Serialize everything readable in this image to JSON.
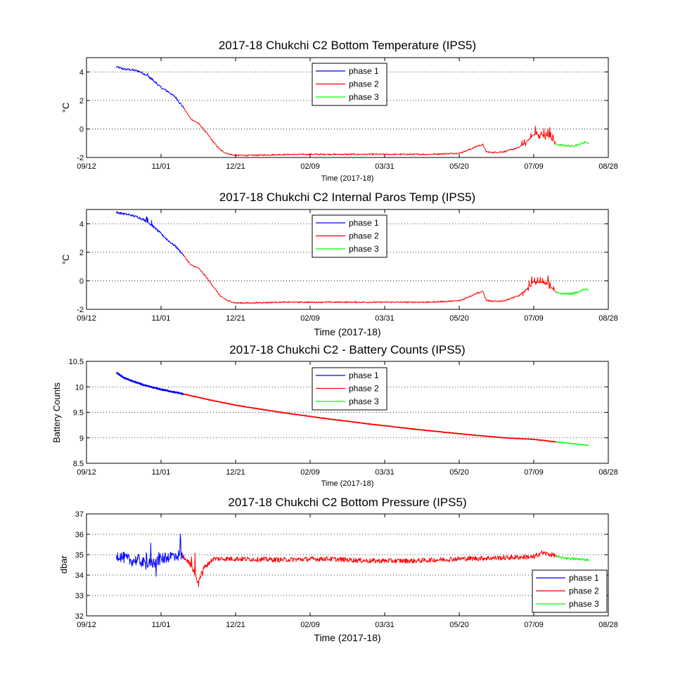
{
  "figure": {
    "background": "#ffffff",
    "phase_colors": {
      "phase 1": "#0000ff",
      "phase 2": "#ff0000",
      "phase 3": "#00ff00"
    }
  },
  "chart_data": [
    {
      "type": "line",
      "title": "2017-18 Chukchi C2 Bottom Temperature (IPS5)",
      "xlabel": "Time (2017-18)",
      "ylabel": "°C",
      "x_ticks": [
        "09/12",
        "11/01",
        "12/21",
        "02/09",
        "03/31",
        "05/20",
        "07/09",
        "08/28"
      ],
      "x_tick_days": [
        0,
        50,
        100,
        150,
        200,
        250,
        300,
        350
      ],
      "xlim_days": [
        0,
        350
      ],
      "ylim": [
        -2,
        5
      ],
      "y_ticks": [
        "-2",
        "0",
        "2",
        "4"
      ],
      "y_tick_values": [
        -2,
        0,
        2,
        4
      ],
      "grid": "dotted",
      "legend": "top-center",
      "legend_entries": [
        "phase 1",
        "phase 2",
        "phase 3"
      ],
      "series": [
        {
          "name": "phase 1",
          "color": "#0000ff",
          "noise": 0.08,
          "x": [
            20,
            25,
            30,
            35,
            40,
            45,
            50,
            55,
            60,
            65
          ],
          "y": [
            4.35,
            4.2,
            4.15,
            4.05,
            3.8,
            3.4,
            2.9,
            2.6,
            2.2,
            1.5
          ]
        },
        {
          "name": "phase 2",
          "color": "#ff0000",
          "noise": 0.05,
          "x": [
            65,
            70,
            75,
            80,
            85,
            90,
            95,
            100,
            110,
            130,
            150,
            180,
            210,
            230,
            250,
            258,
            262,
            266,
            268,
            272,
            280,
            290,
            295,
            300,
            305,
            310,
            315
          ],
          "y": [
            1.5,
            0.7,
            0.4,
            -0.2,
            -0.9,
            -1.5,
            -1.75,
            -1.85,
            -1.85,
            -1.8,
            -1.78,
            -1.78,
            -1.78,
            -1.78,
            -1.7,
            -1.4,
            -1.2,
            -1.1,
            -1.6,
            -1.65,
            -1.6,
            -1.3,
            -0.9,
            -0.4,
            -0.4,
            -0.5,
            -1.05
          ]
        },
        {
          "name": "phase 3",
          "color": "#00ff00",
          "noise": 0.07,
          "x": [
            315,
            320,
            325,
            330,
            335,
            337
          ],
          "y": [
            -1.1,
            -1.15,
            -1.2,
            -1.1,
            -0.9,
            -1.05
          ]
        }
      ],
      "spikes": [
        {
          "series": "phase 2",
          "x_range": [
            292,
            316
          ],
          "amplitude": 0.6,
          "count": 34
        },
        {
          "series": "phase 1",
          "x_range": [
            40,
            46
          ],
          "amplitude": 0.35,
          "count": 4
        }
      ]
    },
    {
      "type": "line",
      "title": "2017-18 Chukchi C2 Internal Paros Temp (IPS5)",
      "xlabel": "Time (2017-18)",
      "ylabel": "°C",
      "x_ticks": [
        "09/12",
        "11/01",
        "12/21",
        "02/09",
        "03/31",
        "05/20",
        "07/09",
        "08/28"
      ],
      "x_tick_days": [
        0,
        50,
        100,
        150,
        200,
        250,
        300,
        350
      ],
      "xlim_days": [
        0,
        350
      ],
      "ylim": [
        -2,
        5
      ],
      "y_ticks": [
        "-2",
        "0",
        "2",
        "4"
      ],
      "y_tick_values": [
        -2,
        0,
        2,
        4
      ],
      "grid": "dotted",
      "legend": "top-center",
      "legend_entries": [
        "phase 1",
        "phase 2",
        "phase 3"
      ],
      "series": [
        {
          "name": "phase 1",
          "color": "#0000ff",
          "noise": 0.08,
          "x": [
            20,
            25,
            30,
            35,
            40,
            45,
            50,
            55,
            60,
            65
          ],
          "y": [
            4.8,
            4.7,
            4.6,
            4.45,
            4.2,
            3.8,
            3.3,
            2.8,
            2.4,
            1.8
          ]
        },
        {
          "name": "phase 2",
          "color": "#ff0000",
          "noise": 0.05,
          "x": [
            65,
            70,
            75,
            80,
            85,
            90,
            95,
            100,
            110,
            130,
            150,
            180,
            210,
            230,
            250,
            258,
            262,
            266,
            268,
            272,
            280,
            290,
            295,
            300,
            305,
            310,
            315
          ],
          "y": [
            1.8,
            1.1,
            0.9,
            0.3,
            -0.4,
            -1.1,
            -1.4,
            -1.55,
            -1.55,
            -1.5,
            -1.5,
            -1.5,
            -1.5,
            -1.5,
            -1.4,
            -1.05,
            -0.85,
            -0.75,
            -1.35,
            -1.45,
            -1.4,
            -1.05,
            -0.6,
            -0.1,
            -0.1,
            -0.3,
            -0.8
          ]
        },
        {
          "name": "phase 3",
          "color": "#00ff00",
          "noise": 0.07,
          "x": [
            315,
            320,
            325,
            330,
            335,
            337
          ],
          "y": [
            -0.85,
            -0.9,
            -0.9,
            -0.8,
            -0.55,
            -0.75
          ]
        }
      ],
      "spikes": [
        {
          "series": "phase 2",
          "x_range": [
            292,
            316
          ],
          "amplitude": 0.55,
          "count": 30
        },
        {
          "series": "phase 1",
          "x_range": [
            40,
            46
          ],
          "amplitude": 0.35,
          "count": 4
        }
      ]
    },
    {
      "type": "line",
      "title": "2017-18 Chukchi C2 - Battery Counts (IPS5)",
      "xlabel": "Time (2017-18)",
      "ylabel": "Battery Counts",
      "x_ticks": [
        "09/12",
        "11/01",
        "12/21",
        "02/09",
        "03/31",
        "05/20",
        "07/09",
        "08/28"
      ],
      "x_tick_days": [
        0,
        50,
        100,
        150,
        200,
        250,
        300,
        350
      ],
      "xlim_days": [
        0,
        350
      ],
      "ylim": [
        8.5,
        10.5
      ],
      "y_ticks": [
        "8.5",
        "9",
        "9.5",
        "10",
        "10.5"
      ],
      "y_tick_values": [
        8.5,
        9,
        9.5,
        10,
        10.5
      ],
      "grid": "dotted",
      "legend": "top-center",
      "legend_entries": [
        "phase 1",
        "phase 2",
        "phase 3"
      ],
      "series": [
        {
          "name": "phase 1",
          "color": "#0000ff",
          "noise": 0.008,
          "width": 2.4,
          "x": [
            20,
            25,
            30,
            40,
            50,
            60,
            65
          ],
          "y": [
            10.28,
            10.18,
            10.12,
            10.02,
            9.95,
            9.89,
            9.86
          ]
        },
        {
          "name": "phase 2",
          "color": "#ff0000",
          "noise": 0.004,
          "width": 1.8,
          "x": [
            65,
            80,
            100,
            130,
            160,
            190,
            220,
            250,
            280,
            300,
            315
          ],
          "y": [
            9.86,
            9.76,
            9.64,
            9.5,
            9.38,
            9.27,
            9.17,
            9.08,
            9.0,
            8.97,
            8.92
          ]
        },
        {
          "name": "phase 3",
          "color": "#00ff00",
          "noise": 0.003,
          "width": 1.5,
          "x": [
            315,
            325,
            337
          ],
          "y": [
            8.92,
            8.89,
            8.85
          ]
        }
      ],
      "spikes": []
    },
    {
      "type": "line",
      "title": "2017-18 Chukchi C2 Bottom Pressure (IPS5)",
      "xlabel": "Time (2017-18)",
      "ylabel": "dbar",
      "x_ticks": [
        "09/12",
        "11/01",
        "12/21",
        "02/09",
        "03/31",
        "05/20",
        "07/09",
        "08/28"
      ],
      "x_tick_days": [
        0,
        50,
        100,
        150,
        200,
        250,
        300,
        350
      ],
      "xlim_days": [
        0,
        350
      ],
      "ylim": [
        32,
        37
      ],
      "y_ticks": [
        "32",
        "33",
        "34",
        "35",
        "36",
        "37"
      ],
      "y_tick_values": [
        32,
        33,
        34,
        35,
        36,
        37
      ],
      "grid": "dotted",
      "legend": "bottom-right",
      "legend_entries": [
        "phase 1",
        "phase 2",
        "phase 3"
      ],
      "series": [
        {
          "name": "phase 1",
          "color": "#0000ff",
          "noise": 0.28,
          "x": [
            20,
            25,
            30,
            35,
            40,
            45,
            50,
            55,
            60,
            65
          ],
          "y": [
            35.0,
            34.85,
            34.7,
            34.75,
            34.5,
            34.6,
            34.8,
            34.9,
            35.0,
            34.9
          ]
        },
        {
          "name": "phase 2",
          "color": "#ff0000",
          "noise": 0.12,
          "x": [
            65,
            70,
            73,
            75,
            78,
            85,
            100,
            130,
            160,
            190,
            220,
            250,
            280,
            300,
            305,
            315
          ],
          "y": [
            34.9,
            34.5,
            34.0,
            33.6,
            34.3,
            34.8,
            34.8,
            34.75,
            34.8,
            34.7,
            34.7,
            34.8,
            34.85,
            34.9,
            35.1,
            34.95
          ]
        },
        {
          "name": "phase 3",
          "color": "#00ff00",
          "noise": 0.06,
          "x": [
            315,
            325,
            337
          ],
          "y": [
            34.9,
            34.8,
            34.75
          ]
        }
      ],
      "spikes": [
        {
          "series": "phase 1",
          "x_range": [
            40,
            64
          ],
          "amplitude": 1.2,
          "count": 18
        },
        {
          "series": "phase 2",
          "x_range": [
            70,
            80
          ],
          "amplitude": 0.9,
          "count": 6
        },
        {
          "series": "phase 2",
          "x_range": [
            298,
            302
          ],
          "amplitude": 0.6,
          "count": 4
        }
      ]
    }
  ]
}
